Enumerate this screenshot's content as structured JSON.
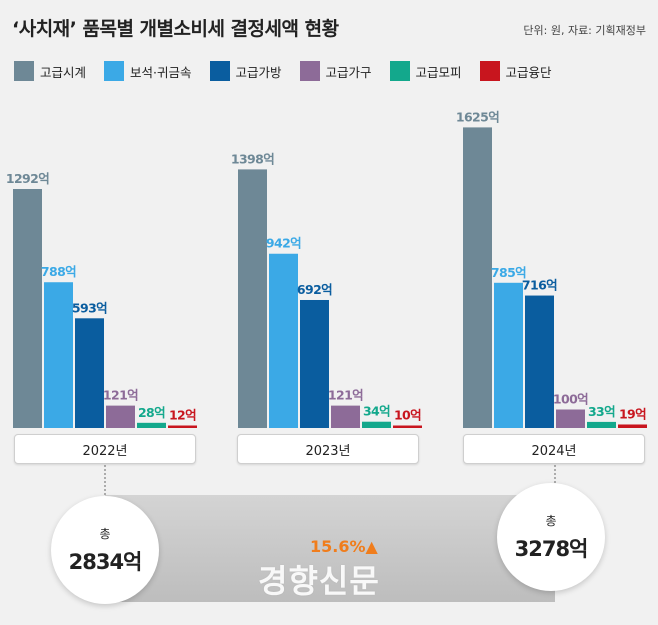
{
  "header": {
    "title": "‘사치재’ 품목별 개별소비세 결정세액 현황",
    "source": "단위: 원, 자료: 기획재정부"
  },
  "colors": {
    "고급시계": "#6e8896",
    "보석·귀금속": "#3ba9e6",
    "고급가방": "#0a5d9f",
    "고급가구": "#8d6b98",
    "고급모피": "#13a88c",
    "고급융단": "#c8151e",
    "labels_watch": "#6e8896",
    "growth": "#f07d1c"
  },
  "chart_data": {
    "type": "bar",
    "title": "‘사치재’ 품목별 개별소비세 결정세액 현황",
    "unit": "억 원",
    "categories": [
      "2022년",
      "2023년",
      "2024년"
    ],
    "series": [
      {
        "name": "고급시계",
        "values": [
          1292,
          1398,
          1625
        ]
      },
      {
        "name": "보석·귀금속",
        "values": [
          788,
          942,
          785
        ]
      },
      {
        "name": "고급가방",
        "values": [
          593,
          692,
          716
        ]
      },
      {
        "name": "고급가구",
        "values": [
          121,
          121,
          100
        ]
      },
      {
        "name": "고급모피",
        "values": [
          28,
          34,
          33
        ]
      },
      {
        "name": "고급융단",
        "values": [
          12,
          10,
          19
        ]
      }
    ],
    "value_labels": [
      [
        "1292억",
        "788억",
        "593억",
        "121억",
        "28억",
        "12억"
      ],
      [
        "1398억",
        "942억",
        "692억",
        "121억",
        "34억",
        "10억"
      ],
      [
        "1625억",
        "785억",
        "716억",
        "100억",
        "33억",
        "19억"
      ]
    ],
    "totals": [
      {
        "label": "총",
        "value": "2834억"
      },
      {
        "label": "총",
        "value": "3278억"
      }
    ],
    "growth": "15.6%▲",
    "legend_placement": "top-left"
  },
  "watermark": "경향신문"
}
